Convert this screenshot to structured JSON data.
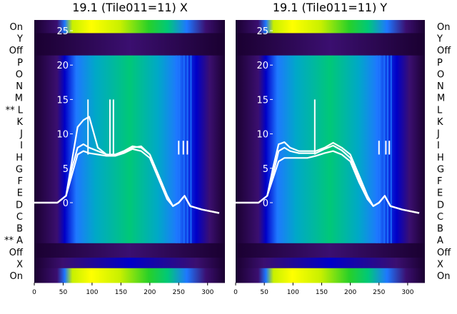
{
  "chart_data": [
    {
      "type": "heatmap",
      "title": "19.1 (Tile011=11) X",
      "xlabel": "",
      "ylabel": "",
      "xlim": [
        0,
        330
      ],
      "x_ticks": [
        0,
        50,
        100,
        150,
        200,
        250,
        300
      ],
      "y_ticks": [
        0,
        5,
        10,
        15,
        20,
        25
      ],
      "y_tick_labels": [
        "0",
        "5",
        "10",
        "15",
        "20",
        "25"
      ],
      "row_labels": [
        "On",
        "Y",
        "Off",
        "P",
        "O",
        "N",
        "M",
        "** L",
        "K",
        "J",
        "I",
        "H",
        "G",
        "F",
        "E",
        "D",
        "C",
        "B",
        "** A",
        "Off",
        "X",
        "On"
      ],
      "colormap": [
        "#1a0030",
        "#3b0f70",
        "#0000c8",
        "#1e78ff",
        "#00a8c8",
        "#00c878",
        "#28d028",
        "#c8f000",
        "#ffff00"
      ],
      "overlay_lines": [
        {
          "x": [
            0,
            40,
            55,
            65,
            75,
            85,
            95,
            110,
            125,
            140,
            155,
            170,
            185,
            200,
            215,
            230,
            240,
            250,
            260,
            270,
            290,
            320
          ],
          "y": [
            0,
            0,
            1,
            6,
            11,
            12,
            12.5,
            8,
            7,
            7,
            7.5,
            8.2,
            8,
            7,
            4,
            1,
            -0.5,
            0,
            1,
            -0.5,
            -1,
            -1.5
          ]
        },
        {
          "x": [
            0,
            40,
            55,
            65,
            75,
            85,
            95,
            110,
            125,
            140,
            155,
            170,
            185,
            200,
            215,
            230,
            240,
            250,
            260,
            270,
            290,
            320
          ],
          "y": [
            0,
            0,
            1,
            5,
            8,
            8.5,
            8,
            7.5,
            7,
            6.8,
            7.3,
            8,
            8.2,
            7,
            4,
            1,
            -0.5,
            0,
            1,
            -0.5,
            -1,
            -1.5
          ]
        },
        {
          "x": [
            0,
            40,
            55,
            65,
            75,
            85,
            95,
            110,
            125,
            140,
            155,
            170,
            185,
            200,
            215,
            230,
            240,
            250,
            260,
            270,
            290,
            320
          ],
          "y": [
            0,
            0,
            1,
            4,
            7,
            7.5,
            7.2,
            7,
            6.8,
            6.8,
            7.2,
            7.8,
            7.5,
            6.5,
            3.5,
            0.5,
            -0.5,
            0,
            1,
            -0.5,
            -1,
            -1.5
          ]
        }
      ],
      "overlay_spikes_x": [
        93,
        131,
        137,
        250,
        258,
        265
      ]
    },
    {
      "type": "heatmap",
      "title": "19.1 (Tile011=11) Y",
      "xlabel": "",
      "ylabel": "",
      "xlim": [
        0,
        330
      ],
      "x_ticks": [
        0,
        50,
        100,
        150,
        200,
        250,
        300
      ],
      "y_ticks": [
        0,
        5,
        10,
        15,
        20,
        25
      ],
      "y_tick_labels": [
        "0",
        "5",
        "10",
        "15",
        "20",
        "25"
      ],
      "row_labels": [
        "On",
        "Y",
        "Off",
        "P",
        "O",
        "N",
        "M",
        "L",
        "K",
        "J",
        "I",
        "H",
        "G",
        "F",
        "E",
        "D",
        "C",
        "B",
        "A",
        "Off",
        "X",
        "On"
      ],
      "colormap": [
        "#1a0030",
        "#3b0f70",
        "#0000c8",
        "#1e78ff",
        "#00a8c8",
        "#00c878",
        "#28d028",
        "#c8f000",
        "#ffff00"
      ],
      "overlay_lines": [
        {
          "x": [
            0,
            40,
            55,
            65,
            75,
            85,
            95,
            110,
            125,
            140,
            155,
            170,
            185,
            200,
            215,
            230,
            240,
            250,
            260,
            270,
            290,
            320
          ],
          "y": [
            0,
            0,
            1,
            5,
            8.5,
            8.8,
            8,
            7.5,
            7.5,
            7.5,
            8,
            8.7,
            8,
            7,
            4,
            1,
            -0.5,
            0,
            1,
            -0.5,
            -1,
            -1.5
          ]
        },
        {
          "x": [
            0,
            40,
            55,
            65,
            75,
            85,
            95,
            110,
            125,
            140,
            155,
            170,
            185,
            200,
            215,
            230,
            240,
            250,
            260,
            270,
            290,
            320
          ],
          "y": [
            0,
            0,
            1,
            4,
            7.5,
            8,
            7.5,
            7.2,
            7.2,
            7.2,
            7.8,
            8.3,
            7.6,
            6.5,
            3.5,
            0.8,
            -0.5,
            0,
            1,
            -0.5,
            -1,
            -1.5
          ]
        },
        {
          "x": [
            0,
            40,
            55,
            65,
            75,
            85,
            95,
            110,
            125,
            140,
            155,
            170,
            185,
            200,
            215,
            230,
            240,
            250,
            260,
            270,
            290,
            320
          ],
          "y": [
            0,
            0,
            1,
            3.5,
            6,
            6.5,
            6.5,
            6.5,
            6.5,
            6.8,
            7.2,
            7.5,
            7,
            6,
            3,
            0.5,
            -0.5,
            0,
            1,
            -0.5,
            -1,
            -1.5
          ]
        }
      ],
      "overlay_spikes_x": [
        138,
        250,
        262,
        268
      ]
    }
  ]
}
